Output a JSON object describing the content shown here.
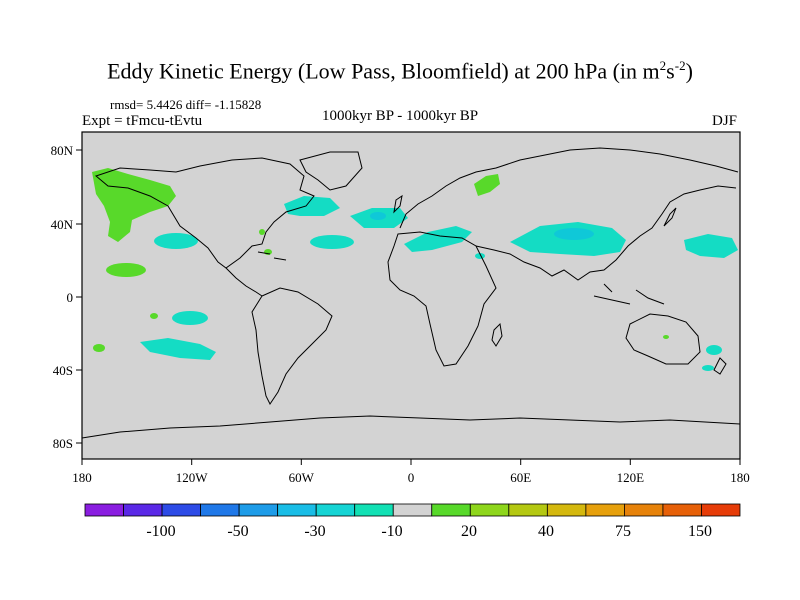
{
  "title": {
    "main": "Eddy Kinetic Energy (Low Pass, Bloomfield) at 200 hPa (in m",
    "sup1": "2",
    "mid": "s",
    "sup2": "-2",
    "end": ")"
  },
  "stats": "rmsd= 5.4426 diff= -1.15828",
  "experiment": "Expt = tFmcu-tEvtu",
  "period": "1000kyr BP - 1000kyr BP",
  "season": "DJF",
  "colors": {
    "land_background": "#d3d3d3",
    "positive_fill": "#58d92a",
    "negative_fill": "#14dcc4",
    "negative_core": "#0fc8d8",
    "coast": "#000000"
  },
  "axes": {
    "x_ticks": [
      "180",
      "120W",
      "60W",
      "0",
      "60E",
      "120E",
      "180"
    ],
    "y_ticks": [
      "80N",
      "40N",
      "0",
      "40S",
      "80S"
    ]
  },
  "colorbar": {
    "colors": [
      "#8a1ee0",
      "#5a28e6",
      "#2d4be6",
      "#1f78e8",
      "#1e9ce8",
      "#19bde6",
      "#16d4d4",
      "#12e0b4",
      "#d3d3d3",
      "#58d92a",
      "#8ed61c",
      "#b4c812",
      "#d4b80e",
      "#e6a00c",
      "#e6820a",
      "#e66008",
      "#e63c08"
    ],
    "labels": [
      "-100",
      "-50",
      "-30",
      "-10",
      "20",
      "40",
      "75",
      "150"
    ]
  }
}
